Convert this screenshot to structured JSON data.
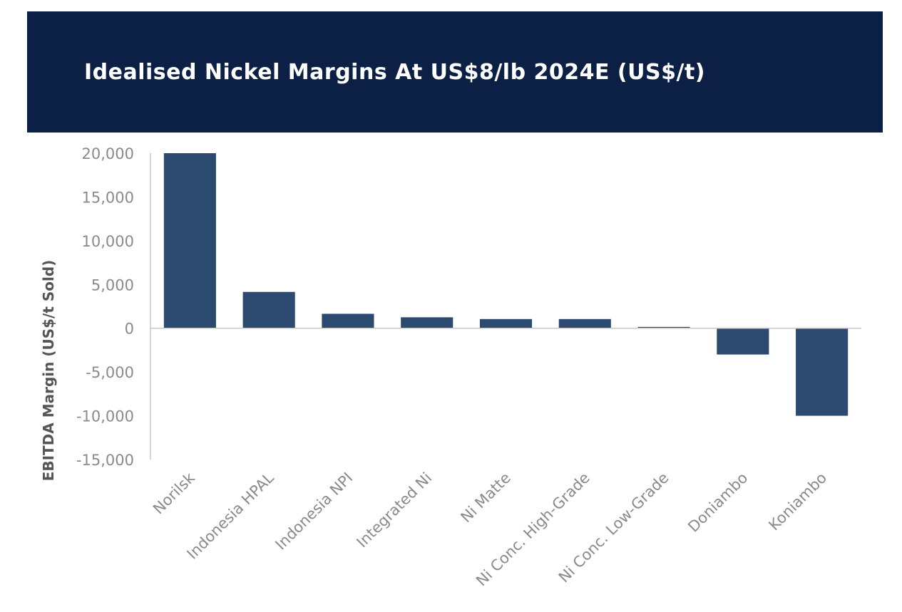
{
  "header": {
    "title": "Idealised Nickel Margins At US$8/lb 2024E (US$/t)"
  },
  "colors": {
    "banner": "#0c1f45",
    "bar": "#2c4a70",
    "axis": "#c8c8c8",
    "tick_text": "#8a8a8a"
  },
  "chart_data": {
    "type": "bar",
    "title": "Idealised Nickel Margins At US$8/lb 2024E (US$/t)",
    "xlabel": "",
    "ylabel": "EBITDA Margin (US$/t Sold)",
    "categories": [
      "Norilsk",
      "Indonesia HPAL",
      "Indonesia NPI",
      "Integrated Ni",
      "Ni Matte",
      "Ni Conc. High-Grade",
      "Ni Conc. Low-Grade",
      "Doniambo",
      "Koniambo"
    ],
    "values": [
      20000,
      4150,
      1650,
      1250,
      1050,
      1050,
      150,
      -3000,
      -10000
    ],
    "ylim": [
      -15000,
      20000
    ],
    "yticks": [
      20000,
      15000,
      10000,
      5000,
      0,
      -5000,
      -10000,
      -15000
    ],
    "ytick_labels": [
      "20,000",
      "15,000",
      "10,000",
      "5,000",
      "0",
      "-5,000",
      "-10,000",
      "-15,000"
    ],
    "grid": false,
    "legend": "none"
  }
}
